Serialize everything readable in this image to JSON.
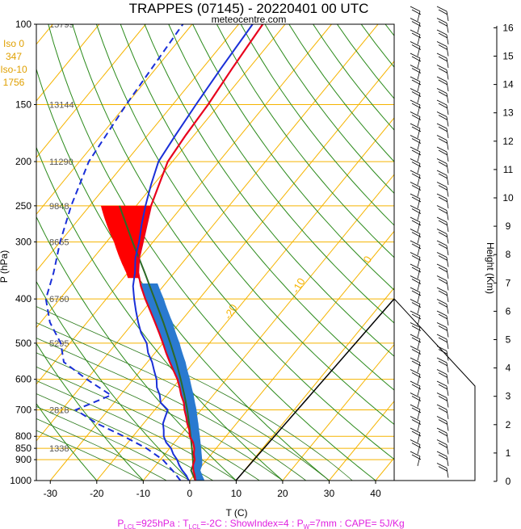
{
  "header": {
    "title": "TRAPPES (07145) - 20220401 00 UTC",
    "source": "meteocentre.com"
  },
  "iso_box": [
    "Iso 0",
    "347",
    "Iso-10",
    "1756"
  ],
  "footer": {
    "segments": [
      {
        "text": "P"
      },
      {
        "text": "LCL",
        "sub": true
      },
      {
        "text": "=925hPa : T"
      },
      {
        "text": "LCL",
        "sub": true
      },
      {
        "text": "=-2C : ShowIndex=4 : P"
      },
      {
        "text": "W",
        "sub": true
      },
      {
        "text": "=7mm : CAPE= 5J/Kg"
      }
    ],
    "color": "#e020e0"
  },
  "colors": {
    "isotherm": "#f5b400",
    "dry_adiabat": "#2a8a1a",
    "temperature": "#e8001c",
    "dewpoint": "#1a2fd8",
    "parcel": "#2d6a26",
    "cape": "#2a7ad0",
    "cin": "#ff0000",
    "isobar": "#f5b400"
  },
  "chart_data": {
    "type": "skew-t log-p",
    "xlabel": "T (C)",
    "ylabel": "P (hPa)",
    "y2label": "Height (Km)",
    "xlim": [
      -33,
      44
    ],
    "ylim": [
      1000,
      100
    ],
    "x_ticks": [
      -30,
      -20,
      -10,
      0,
      10,
      20,
      30,
      40
    ],
    "pressure_levels": [
      100,
      150,
      200,
      250,
      300,
      400,
      500,
      600,
      700,
      800,
      850,
      900,
      1000
    ],
    "height_levels_m": [
      {
        "p": 100,
        "h": "15799"
      },
      {
        "p": 150,
        "h": "13144"
      },
      {
        "p": 200,
        "h": "11290"
      },
      {
        "p": 250,
        "h": "9848"
      },
      {
        "p": 300,
        "h": "8665"
      },
      {
        "p": 400,
        "h": "6760"
      },
      {
        "p": 500,
        "h": "5295"
      },
      {
        "p": 700,
        "h": "2818"
      },
      {
        "p": 850,
        "h": "1338"
      }
    ],
    "height_km_ticks": [
      0,
      1,
      2,
      3,
      4,
      5,
      6,
      7,
      8,
      9,
      10,
      11,
      12,
      13,
      14,
      15,
      16
    ],
    "isotherm_labels": [
      -30,
      -20,
      -10,
      0,
      10,
      20,
      30
    ],
    "temperature": [
      [
        1000,
        1.2
      ],
      [
        975,
        0.2
      ],
      [
        950,
        -1.0
      ],
      [
        925,
        -2.0
      ],
      [
        900,
        -2.6
      ],
      [
        875,
        -3.8
      ],
      [
        850,
        -4.7
      ],
      [
        825,
        -6.0
      ],
      [
        800,
        -7.8
      ],
      [
        775,
        -9.0
      ],
      [
        750,
        -10.6
      ],
      [
        725,
        -12.0
      ],
      [
        700,
        -13.6
      ],
      [
        675,
        -15.0
      ],
      [
        650,
        -16.9
      ],
      [
        625,
        -18.6
      ],
      [
        600,
        -20.5
      ],
      [
        575,
        -22.8
      ],
      [
        550,
        -25.2
      ],
      [
        525,
        -27.6
      ],
      [
        500,
        -30.0
      ],
      [
        475,
        -32.6
      ],
      [
        450,
        -35.4
      ],
      [
        425,
        -38.4
      ],
      [
        400,
        -41.6
      ],
      [
        375,
        -44.8
      ],
      [
        350,
        -47.8
      ],
      [
        325,
        -50.2
      ],
      [
        300,
        -52.2
      ],
      [
        275,
        -54.4
      ],
      [
        250,
        -56.8
      ],
      [
        225,
        -58.8
      ],
      [
        200,
        -61.0
      ],
      [
        175,
        -61.8
      ],
      [
        150,
        -62.4
      ],
      [
        125,
        -63.6
      ],
      [
        100,
        -64.8
      ]
    ],
    "dewpoint": [
      [
        1000,
        -0.2
      ],
      [
        975,
        -1.6
      ],
      [
        950,
        -3.4
      ],
      [
        925,
        -5.0
      ],
      [
        900,
        -6.4
      ],
      [
        875,
        -8.2
      ],
      [
        850,
        -9.7
      ],
      [
        825,
        -11.8
      ],
      [
        800,
        -13.4
      ],
      [
        775,
        -14.5
      ],
      [
        750,
        -15.8
      ],
      [
        725,
        -16.5
      ],
      [
        700,
        -17.2
      ],
      [
        675,
        -20.0
      ],
      [
        650,
        -21.5
      ],
      [
        625,
        -23.5
      ],
      [
        600,
        -25.0
      ],
      [
        575,
        -27.0
      ],
      [
        550,
        -29.0
      ],
      [
        525,
        -31.5
      ],
      [
        500,
        -33.5
      ],
      [
        475,
        -36.5
      ],
      [
        450,
        -39.0
      ],
      [
        425,
        -41.5
      ],
      [
        400,
        -44.0
      ],
      [
        375,
        -46.5
      ],
      [
        350,
        -48.5
      ],
      [
        325,
        -51.0
      ],
      [
        300,
        -53.0
      ],
      [
        275,
        -55.5
      ],
      [
        250,
        -58.0
      ],
      [
        225,
        -60.5
      ],
      [
        200,
        -63.0
      ],
      [
        175,
        -64.0
      ],
      [
        150,
        -65.0
      ],
      [
        125,
        -66.0
      ],
      [
        100,
        -67.0
      ]
    ],
    "dewpoint_secondary": [
      [
        1000,
        -2.0
      ],
      [
        950,
        -5.5
      ],
      [
        900,
        -9.5
      ],
      [
        850,
        -15.0
      ],
      [
        800,
        -22.0
      ],
      [
        750,
        -30.0
      ],
      [
        700,
        -37.0
      ],
      [
        650,
        -32.0
      ],
      [
        600,
        -40.0
      ],
      [
        550,
        -48.0
      ],
      [
        500,
        -52.0
      ],
      [
        450,
        -58.0
      ],
      [
        400,
        -63.0
      ],
      [
        350,
        -66.0
      ],
      [
        300,
        -70.0
      ],
      [
        250,
        -74.0
      ],
      [
        200,
        -78.0
      ],
      [
        150,
        -80.0
      ],
      [
        100,
        -82.0
      ]
    ],
    "parcel": [
      [
        1000,
        1.2
      ],
      [
        950,
        -1.5
      ],
      [
        925,
        -2.0
      ],
      [
        900,
        -3.0
      ],
      [
        850,
        -5.2
      ],
      [
        800,
        -7.6
      ],
      [
        750,
        -10.2
      ],
      [
        700,
        -13.0
      ],
      [
        650,
        -16.2
      ],
      [
        600,
        -19.8
      ],
      [
        550,
        -23.8
      ],
      [
        500,
        -28.4
      ],
      [
        450,
        -33.6
      ],
      [
        400,
        -39.6
      ],
      [
        350,
        -46.4
      ],
      [
        300,
        -54.4
      ],
      [
        250,
        -63.6
      ]
    ]
  }
}
